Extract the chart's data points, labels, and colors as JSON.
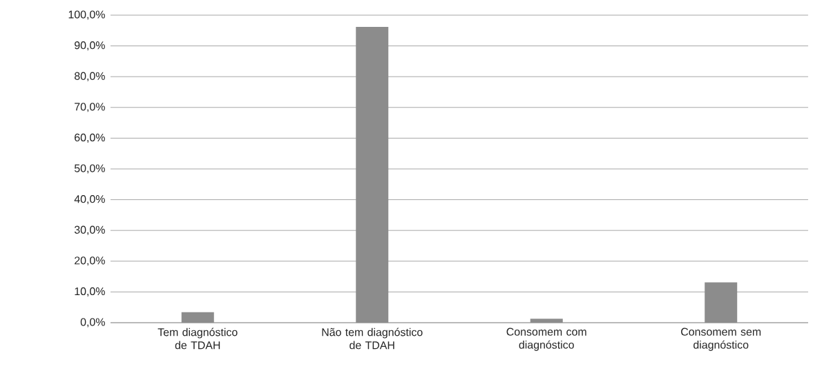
{
  "chart_data": {
    "type": "bar",
    "categories": [
      "Tem diagnóstico de TDAH",
      "Não tem diagnóstico de TDAH",
      "Consomem com diagnóstico",
      "Consomem sem diagnóstico"
    ],
    "values": [
      3.4,
      96.2,
      1.3,
      13.1
    ],
    "color": "#8c8c8c",
    "ylim": [
      0,
      100
    ],
    "yticks": [
      {
        "value": 0,
        "label": "0,0%"
      },
      {
        "value": 10,
        "label": "10,0%"
      },
      {
        "value": 20,
        "label": "20,0%"
      },
      {
        "value": 30,
        "label": "30,0%"
      },
      {
        "value": 40,
        "label": "40,0%"
      },
      {
        "value": 50,
        "label": "50,0%"
      },
      {
        "value": 60,
        "label": "60,0%"
      },
      {
        "value": 70,
        "label": "70,0%"
      },
      {
        "value": 80,
        "label": "80,0%"
      },
      {
        "value": 90,
        "label": "90,0%"
      },
      {
        "value": 100,
        "label": "100,0%"
      }
    ],
    "grid": "y"
  }
}
